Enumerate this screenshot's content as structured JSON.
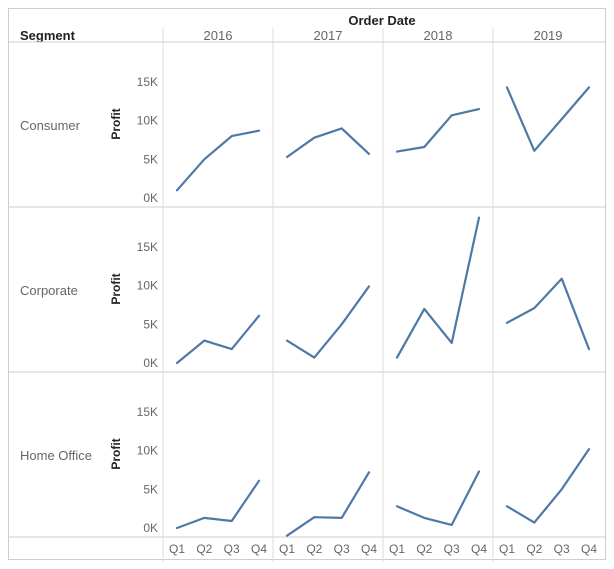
{
  "chart_data": {
    "type": "line",
    "title": "Order Date",
    "row_header": "Segment",
    "ylabel": "Profit",
    "years": [
      "2016",
      "2017",
      "2018",
      "2019"
    ],
    "quarters": [
      "Q1",
      "Q2",
      "Q3",
      "Q4"
    ],
    "ylim": [
      0,
      18000
    ],
    "y_ticks": [
      0,
      5000,
      10000,
      15000
    ],
    "y_tick_labels": [
      "0K",
      "5K",
      "10K",
      "15K"
    ],
    "line_color": "#4e79a7",
    "grid": false,
    "segments": [
      {
        "name": "Consumer",
        "values": {
          "2016": [
            1000,
            5000,
            8000,
            8700
          ],
          "2017": [
            5300,
            7800,
            9000,
            5700
          ],
          "2018": [
            6000,
            6600,
            10700,
            11500
          ],
          "2019": [
            14300,
            6100,
            10200,
            14300
          ]
        }
      },
      {
        "name": "Corporate",
        "values": {
          "2016": [
            0,
            2900,
            1800,
            6100
          ],
          "2017": [
            2900,
            700,
            5000,
            9900
          ],
          "2018": [
            700,
            7000,
            2600,
            18800
          ],
          "2019": [
            5200,
            7100,
            10900,
            1800
          ]
        }
      },
      {
        "name": "Home Office",
        "values": {
          "2016": [
            0,
            1300,
            900,
            6100
          ],
          "2017": [
            -1000,
            1400,
            1300,
            7200
          ],
          "2018": [
            2800,
            1300,
            400,
            7300
          ],
          "2019": [
            2800,
            700,
            5000,
            10200
          ]
        }
      }
    ]
  }
}
